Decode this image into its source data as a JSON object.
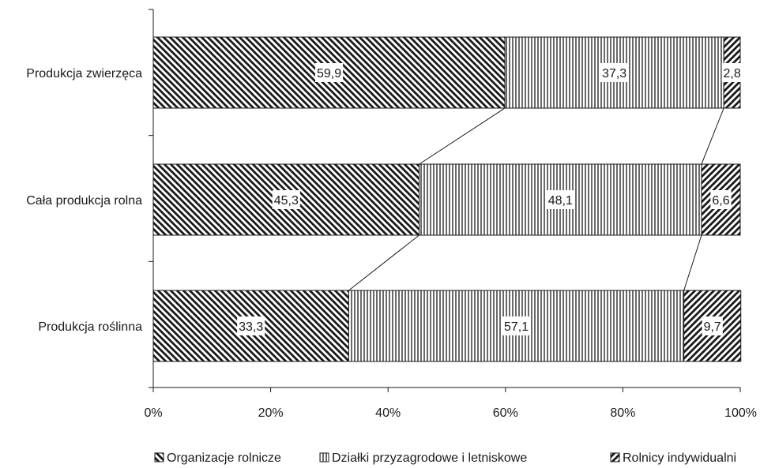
{
  "chart_data": {
    "type": "bar",
    "orientation": "horizontal",
    "stacked": true,
    "percent_stacked": true,
    "categories": [
      "Produkcja zwierzęca",
      "Cała produkcja rolna",
      "Produkcja roślinna"
    ],
    "series": [
      {
        "name": "Organizacje rolnicze",
        "values": [
          59.9,
          45.3,
          33.3
        ],
        "labels": [
          "59,9",
          "45,3",
          "33,3"
        ],
        "pattern": "diagonal-down"
      },
      {
        "name": "Działki przyzagrodowe i letniskowe",
        "values": [
          37.3,
          48.1,
          57.1
        ],
        "labels": [
          "37,3",
          "48,1",
          "57,1"
        ],
        "pattern": "vertical"
      },
      {
        "name": "Rolnicy indywidualni",
        "values": [
          2.8,
          6.6,
          9.7
        ],
        "labels": [
          "2,8",
          "6,6",
          "9,7"
        ],
        "pattern": "diagonal-up"
      }
    ],
    "xticks": [
      "0%",
      "20%",
      "40%",
      "60%",
      "80%",
      "100%"
    ],
    "xlim": [
      0,
      100
    ],
    "series_lines": true,
    "legend_position": "bottom",
    "grid": false
  }
}
